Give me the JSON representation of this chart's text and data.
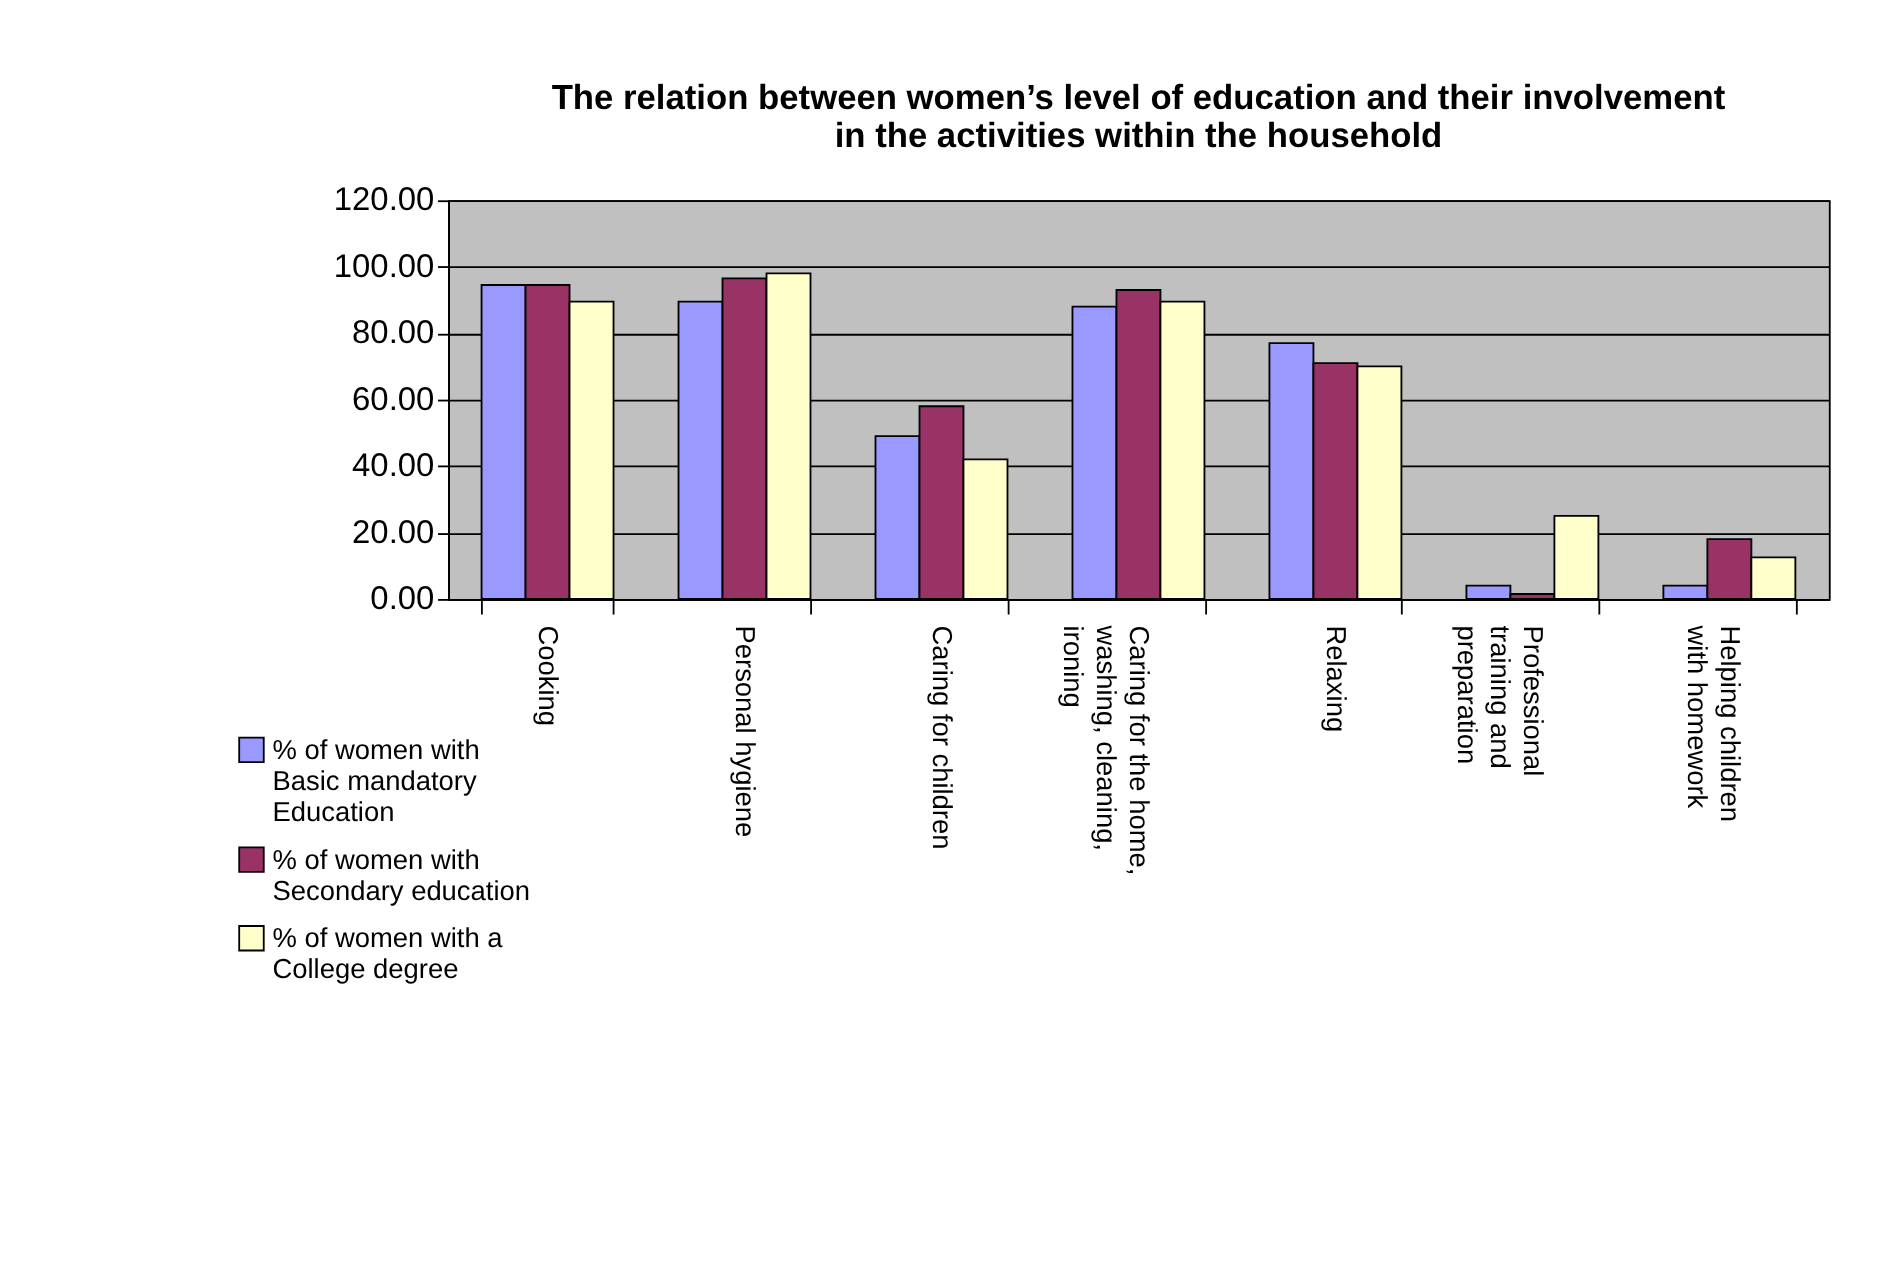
{
  "chart_data": {
    "type": "bar",
    "title": "The relation between women’s level of education and their involvement in the activities within the household",
    "categories": [
      "Cooking",
      "Personal hygiene",
      "Caring for children",
      "Caring for the home, washing, cleaning, ironing",
      "Relaxing",
      "Professional training and preparation",
      "Helping children with homework"
    ],
    "series": [
      {
        "name": "% of women with Basic mandatory Education",
        "color": "#9999ff",
        "values": [
          94.5,
          89.5,
          49,
          88,
          77,
          4,
          4
        ]
      },
      {
        "name": "% of women with Secondary education",
        "color": "#993366",
        "values": [
          94.5,
          96.5,
          58,
          93,
          71,
          1.5,
          18
        ]
      },
      {
        "name": "% of women with a College degree",
        "color": "#ffffcc",
        "values": [
          89.5,
          98,
          42,
          89.5,
          70,
          25,
          12.5
        ]
      }
    ],
    "ylim": [
      0,
      120
    ],
    "yticks": [
      {
        "value": 0,
        "label": "0.00"
      },
      {
        "value": 20,
        "label": "20.00"
      },
      {
        "value": 40,
        "label": "40.00"
      },
      {
        "value": 60,
        "label": "60.00"
      },
      {
        "value": 80,
        "label": "80.00"
      },
      {
        "value": 100,
        "label": "100.00"
      },
      {
        "value": 120,
        "label": "120.00"
      }
    ],
    "grid": "y",
    "legend": "bottom left"
  }
}
